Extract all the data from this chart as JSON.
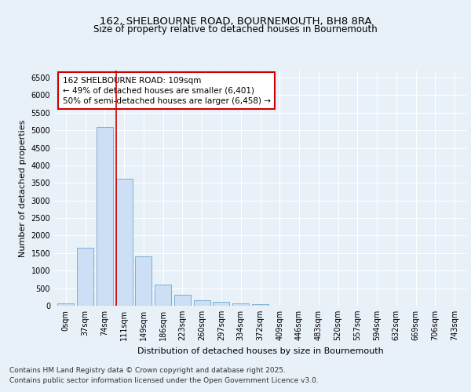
{
  "title_line1": "162, SHELBOURNE ROAD, BOURNEMOUTH, BH8 8RA",
  "title_line2": "Size of property relative to detached houses in Bournemouth",
  "xlabel": "Distribution of detached houses by size in Bournemouth",
  "ylabel": "Number of detached properties",
  "categories": [
    "0sqm",
    "37sqm",
    "74sqm",
    "111sqm",
    "149sqm",
    "186sqm",
    "223sqm",
    "260sqm",
    "297sqm",
    "334sqm",
    "372sqm",
    "409sqm",
    "446sqm",
    "483sqm",
    "520sqm",
    "557sqm",
    "594sqm",
    "632sqm",
    "669sqm",
    "706sqm",
    "743sqm"
  ],
  "values": [
    60,
    1650,
    5100,
    3620,
    1400,
    610,
    310,
    150,
    110,
    70,
    40,
    0,
    0,
    0,
    0,
    0,
    0,
    0,
    0,
    0,
    0
  ],
  "bar_color": "#ccdff5",
  "bar_edge_color": "#7bafd4",
  "vline_color": "#cc0000",
  "annotation_text": "162 SHELBOURNE ROAD: 109sqm\n← 49% of detached houses are smaller (6,401)\n50% of semi-detached houses are larger (6,458) →",
  "annotation_box_facecolor": "#ffffff",
  "annotation_box_edgecolor": "#cc0000",
  "ylim": [
    0,
    6700
  ],
  "yticks": [
    0,
    500,
    1000,
    1500,
    2000,
    2500,
    3000,
    3500,
    4000,
    4500,
    5000,
    5500,
    6000,
    6500
  ],
  "background_color": "#e8f0f8",
  "grid_color": "#ffffff",
  "footer_line1": "Contains HM Land Registry data © Crown copyright and database right 2025.",
  "footer_line2": "Contains public sector information licensed under the Open Government Licence v3.0.",
  "title_fontsize": 9.5,
  "subtitle_fontsize": 8.5,
  "axis_label_fontsize": 8,
  "tick_fontsize": 7,
  "annotation_fontsize": 7.5,
  "footer_fontsize": 6.5
}
